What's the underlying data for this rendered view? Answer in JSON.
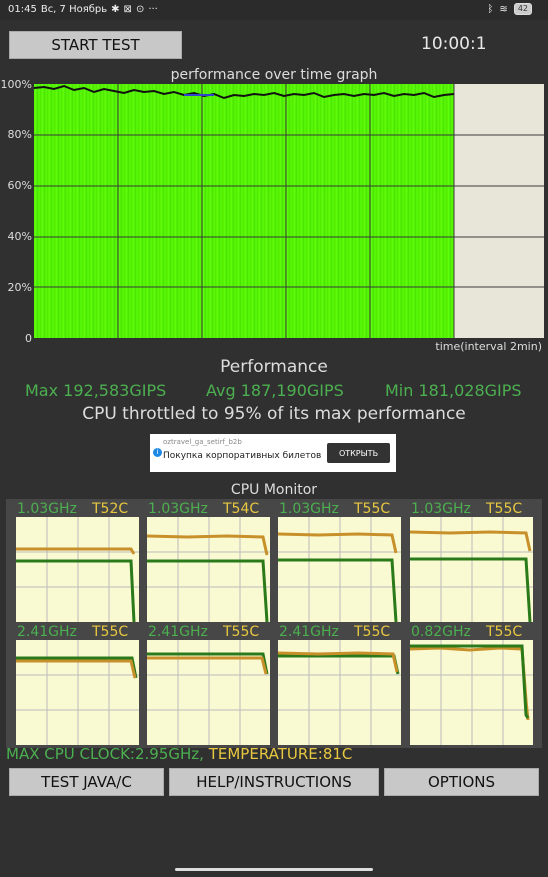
{
  "status_bar": {
    "time": "01:45",
    "date": "Вс, 7 Ноябрь",
    "icons": [
      "gear-icon",
      "media-icon",
      "alarm-icon",
      "more-icon"
    ],
    "right_icons": [
      "bluetooth-icon",
      "wifi-icon"
    ],
    "battery": "42"
  },
  "toolbar": {
    "start_label": "START TEST",
    "timer": "10:00:1"
  },
  "graph": {
    "title": "performance over time graph",
    "y_ticks": [
      "100%",
      "80%",
      "60%",
      "40%",
      "20%",
      "0"
    ],
    "x_label": "time(interval 2min)"
  },
  "performance": {
    "title": "Performance",
    "max": "Max 192,583GIPS",
    "avg": "Avg 187,190GIPS",
    "min": "Min 181,028GIPS",
    "throttle": "CPU throttled to 95% of its max performance"
  },
  "ad": {
    "small": "oztravel_ga_setirf_b2b",
    "text": "Покупка корпоративных билетов",
    "button": "ОТКРЫТЬ",
    "info": "i"
  },
  "cpu_monitor": {
    "title": "CPU Monitor",
    "cores": [
      {
        "freq": "1.03GHz",
        "temp": "T52C"
      },
      {
        "freq": "1.03GHz",
        "temp": "T54C"
      },
      {
        "freq": "1.03GHz",
        "temp": "T55C"
      },
      {
        "freq": "1.03GHz",
        "temp": "T55C"
      },
      {
        "freq": "2.41GHz",
        "temp": "T55C"
      },
      {
        "freq": "2.41GHz",
        "temp": "T55C"
      },
      {
        "freq": "2.41GHz",
        "temp": "T55C"
      },
      {
        "freq": "0.82GHz",
        "temp": "T55C"
      }
    ],
    "max_clock": "MAX CPU CLOCK:2.95GHz,",
    "temperature": "TEMPERATURE:81C"
  },
  "buttons": {
    "java": "TEST JAVA/C",
    "help": "HELP/INSTRUCTIONS",
    "options": "OPTIONS"
  },
  "colors": {
    "green": "#4caf50",
    "yellow": "#e8c840",
    "orange": "#c8902a"
  }
}
